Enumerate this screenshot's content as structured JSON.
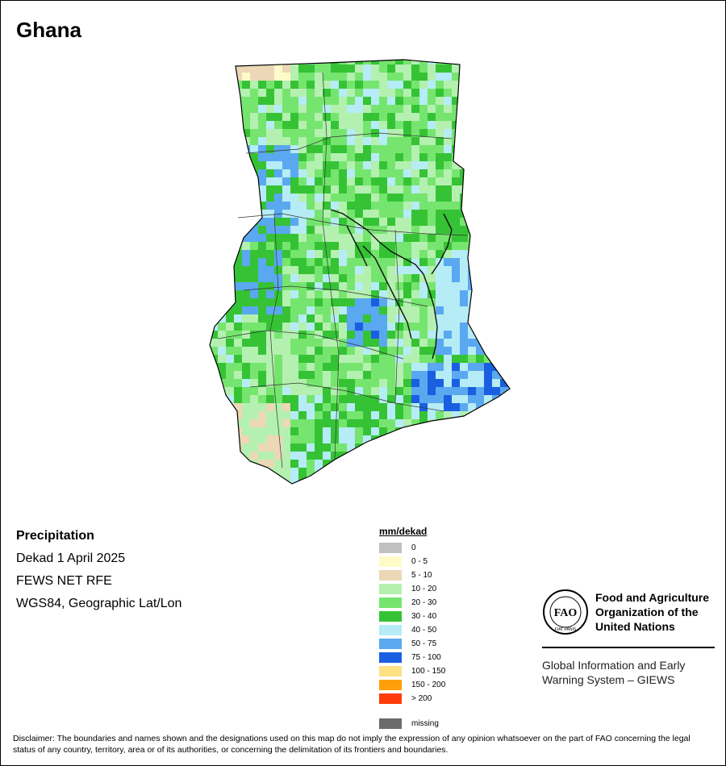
{
  "title": "Ghana",
  "info": {
    "variable": "Precipitation",
    "period": "Dekad 1 April 2025",
    "source": "FEWS NET RFE",
    "projection": "WGS84, Geographic Lat/Lon"
  },
  "legend": {
    "unit": "mm/dekad",
    "classes": [
      {
        "label": "0",
        "color": "#c0c0c0"
      },
      {
        "label": "0 - 5",
        "color": "#fffbc8"
      },
      {
        "label": "5 - 10",
        "color": "#ecd8b6"
      },
      {
        "label": "10 - 20",
        "color": "#b4f0b0"
      },
      {
        "label": "20 - 30",
        "color": "#76e56f"
      },
      {
        "label": "30 - 40",
        "color": "#35c335"
      },
      {
        "label": "40 - 50",
        "color": "#b5ecf5"
      },
      {
        "label": "50 - 75",
        "color": "#5aa8f0"
      },
      {
        "label": "75 - 100",
        "color": "#1a5fe0"
      },
      {
        "label": "100 - 150",
        "color": "#ffe083"
      },
      {
        "label": "150 - 200",
        "color": "#ff9f0a"
      },
      {
        "label": "> 200",
        "color": "#ff3b0a"
      }
    ],
    "missing": {
      "label": "missing",
      "color": "#6b6b6b"
    }
  },
  "org": {
    "logo_text": "FAO",
    "logo_motto": "FIAT PANIS",
    "name": [
      "Food and Agriculture",
      "Organization of the",
      "United Nations"
    ],
    "system": [
      "Global Information and Early",
      "Warning System – GIEWS"
    ]
  },
  "disclaimer": "Disclaimer: The boundaries and names shown and the designations used on this map do not imply the expression of any opinion whatsoever on the part of FAO concerning the legal status of any country, territory, area or of its authorities, or concerning the delimitation of its frontiers and boundaries."
}
